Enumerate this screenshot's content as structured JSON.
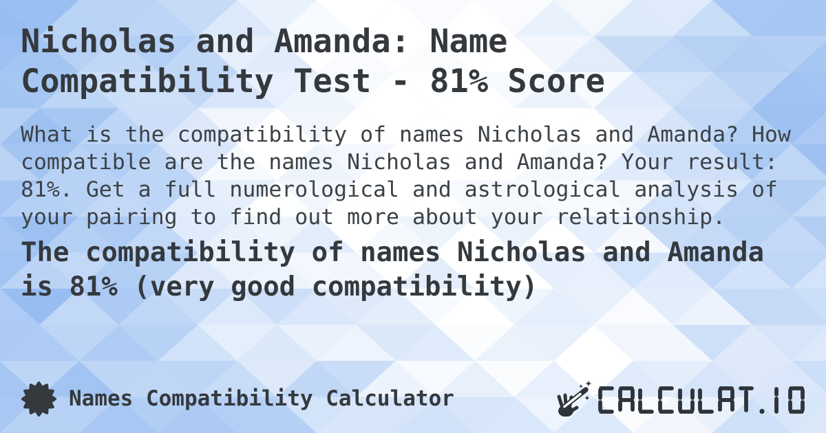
{
  "page": {
    "title": "Nicholas and Amanda: Name Compatibility Test - 81% Score",
    "description": "What is the compatibility of names Nicholas and Amanda? How compatible are the names Nicholas and Amanda? Your result: 81%. Get a full numerological and astrological analysis of your pairing to find out more about your relationship.",
    "result_heading": "The compatibility of names Nicholas and Amanda is 81% (very good compatibility)"
  },
  "footer": {
    "app_name": "Names Compatibility Calculator",
    "brand_text": "CALCULAT.IO",
    "app_icon": "starburst-icon",
    "brand_icon": "magic-wand-hand-icon"
  },
  "colors": {
    "ink": "#34393e",
    "body_ink": "#3c4247",
    "logo_ink": "#2f343a",
    "bg_deep": "#94bbf0",
    "bg_light": "#ffffff"
  }
}
